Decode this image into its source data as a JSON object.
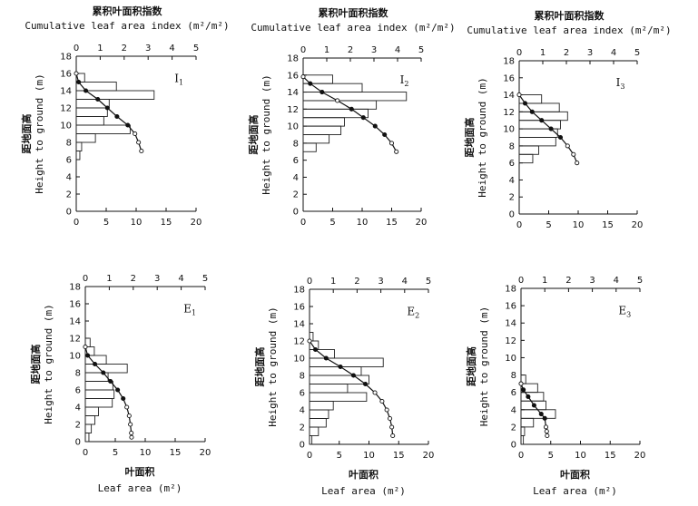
{
  "chart_data": [
    {
      "id": "I1",
      "type": "bar+line",
      "plot_label": "I",
      "plot_label_sub": "1",
      "top_title_cn": "累积叶面积指数",
      "top_title_en": "Cumulative leaf area index (m²/m²)",
      "bottom_title_cn": "",
      "bottom_title_en": "",
      "ylabel_cn": "距地面高",
      "ylabel_en": "Height to ground (m)",
      "top_ticks": [
        "0",
        "1",
        "2",
        "3",
        "4",
        "5"
      ],
      "bottom_ticks": [
        "0",
        "5",
        "10",
        "15",
        "20"
      ],
      "y_ticks": [
        "0",
        "2",
        "4",
        "6",
        "8",
        "10",
        "12",
        "14",
        "16",
        "18"
      ],
      "ylim": [
        0,
        18
      ],
      "bottom_xlim": [
        0,
        20
      ],
      "top_xlim": [
        0,
        5
      ],
      "bars": [
        {
          "y": 6.5,
          "value": 0.6
        },
        {
          "y": 7.5,
          "value": 0.9
        },
        {
          "y": 8.5,
          "value": 3.2
        },
        {
          "y": 9.5,
          "value": 9.0
        },
        {
          "y": 10.5,
          "value": 4.6
        },
        {
          "y": 11.5,
          "value": 5.2
        },
        {
          "y": 12.5,
          "value": 5.5
        },
        {
          "y": 13.5,
          "value": 13.0
        },
        {
          "y": 14.5,
          "value": 6.7
        },
        {
          "y": 15.5,
          "value": 1.4
        }
      ],
      "curve": [
        {
          "lai": 0.0,
          "h": 16.0,
          "filled": false
        },
        {
          "lai": 0.1,
          "h": 15.0,
          "filled": true
        },
        {
          "lai": 0.4,
          "h": 14.0,
          "filled": true
        },
        {
          "lai": 0.9,
          "h": 13.0,
          "filled": true
        },
        {
          "lai": 1.3,
          "h": 12.0,
          "filled": true
        },
        {
          "lai": 1.7,
          "h": 11.0,
          "filled": true
        },
        {
          "lai": 2.15,
          "h": 10.0,
          "filled": true
        },
        {
          "lai": 2.45,
          "h": 9.0,
          "filled": false
        },
        {
          "lai": 2.6,
          "h": 8.0,
          "filled": false
        },
        {
          "lai": 2.72,
          "h": 7.0,
          "filled": false
        }
      ]
    },
    {
      "id": "I2",
      "type": "bar+line",
      "plot_label": "I",
      "plot_label_sub": "2",
      "top_title_cn": "累积叶面积指数",
      "top_title_en": "Cumulative leaf area index (m²/m²)",
      "bottom_title_cn": "",
      "bottom_title_en": "",
      "ylabel_cn": "距地面高",
      "ylabel_en": "Height to ground (m)",
      "top_ticks": [
        "0",
        "1",
        "2",
        "3",
        "4",
        "5"
      ],
      "bottom_ticks": [
        "0",
        "5",
        "10",
        "15",
        "20"
      ],
      "y_ticks": [
        "0",
        "2",
        "4",
        "6",
        "8",
        "10",
        "12",
        "14",
        "16",
        "18"
      ],
      "ylim": [
        0,
        18
      ],
      "bottom_xlim": [
        0,
        20
      ],
      "top_xlim": [
        0,
        5
      ],
      "bars": [
        {
          "y": 7.5,
          "value": 2.2
        },
        {
          "y": 8.5,
          "value": 4.4
        },
        {
          "y": 9.5,
          "value": 6.4
        },
        {
          "y": 10.5,
          "value": 7.0
        },
        {
          "y": 11.5,
          "value": 11.0
        },
        {
          "y": 12.5,
          "value": 12.4
        },
        {
          "y": 13.5,
          "value": 17.5
        },
        {
          "y": 14.5,
          "value": 10.0
        },
        {
          "y": 15.5,
          "value": 5.0
        }
      ],
      "curve": [
        {
          "lai": 0.0,
          "h": 15.8,
          "filled": false
        },
        {
          "lai": 0.3,
          "h": 15.0,
          "filled": true
        },
        {
          "lai": 0.8,
          "h": 14.0,
          "filled": true
        },
        {
          "lai": 1.45,
          "h": 13.0,
          "filled": false
        },
        {
          "lai": 2.05,
          "h": 12.0,
          "filled": true
        },
        {
          "lai": 2.55,
          "h": 11.0,
          "filled": true
        },
        {
          "lai": 3.05,
          "h": 10.0,
          "filled": true
        },
        {
          "lai": 3.45,
          "h": 9.0,
          "filled": true
        },
        {
          "lai": 3.75,
          "h": 8.0,
          "filled": false
        },
        {
          "lai": 3.95,
          "h": 7.0,
          "filled": false
        }
      ]
    },
    {
      "id": "I3",
      "type": "bar+line",
      "plot_label": "I",
      "plot_label_sub": "3",
      "top_title_cn": "累积叶面积指数",
      "top_title_en": "Cumulative leaf area index (m²/m²)",
      "bottom_title_cn": "",
      "bottom_title_en": "",
      "ylabel_cn": "距地面高",
      "ylabel_en": "Height to ground (m)",
      "top_ticks": [
        "0",
        "1",
        "2",
        "3",
        "4",
        "5"
      ],
      "bottom_ticks": [
        "0",
        "5",
        "10",
        "15",
        "20"
      ],
      "y_ticks": [
        "0",
        "2",
        "4",
        "6",
        "8",
        "10",
        "12",
        "14",
        "16",
        "18"
      ],
      "ylim": [
        0,
        18
      ],
      "bottom_xlim": [
        0,
        20
      ],
      "top_xlim": [
        0,
        5
      ],
      "bars": [
        {
          "y": 6.5,
          "value": 2.3
        },
        {
          "y": 7.5,
          "value": 3.3
        },
        {
          "y": 8.5,
          "value": 6.2
        },
        {
          "y": 9.5,
          "value": 6.5
        },
        {
          "y": 10.5,
          "value": 7.0
        },
        {
          "y": 11.5,
          "value": 8.2
        },
        {
          "y": 12.5,
          "value": 6.8
        },
        {
          "y": 13.5,
          "value": 3.8
        }
      ],
      "curve": [
        {
          "lai": 0.0,
          "h": 14.0,
          "filled": false
        },
        {
          "lai": 0.25,
          "h": 13.0,
          "filled": true
        },
        {
          "lai": 0.55,
          "h": 12.0,
          "filled": true
        },
        {
          "lai": 0.95,
          "h": 11.0,
          "filled": true
        },
        {
          "lai": 1.35,
          "h": 10.0,
          "filled": true
        },
        {
          "lai": 1.75,
          "h": 9.0,
          "filled": true
        },
        {
          "lai": 2.05,
          "h": 8.0,
          "filled": false
        },
        {
          "lai": 2.3,
          "h": 7.0,
          "filled": false
        },
        {
          "lai": 2.45,
          "h": 6.0,
          "filled": false
        }
      ]
    },
    {
      "id": "E1",
      "type": "bar+line",
      "plot_label": "E",
      "plot_label_sub": "1",
      "top_title_cn": "",
      "top_title_en": "",
      "bottom_title_cn": "叶面积",
      "bottom_title_en": "Leaf area (m²)",
      "ylabel_cn": "距地面高",
      "ylabel_en": "Height to ground (m)",
      "top_ticks": [
        "0",
        "1",
        "2",
        "3",
        "4",
        "5"
      ],
      "bottom_ticks": [
        "0",
        "5",
        "10",
        "15",
        "20"
      ],
      "y_ticks": [
        "0",
        "2",
        "4",
        "6",
        "8",
        "10",
        "12",
        "14",
        "16",
        "18"
      ],
      "ylim": [
        0,
        18
      ],
      "bottom_xlim": [
        0,
        20
      ],
      "top_xlim": [
        0,
        5
      ],
      "bars": [
        {
          "y": 0.5,
          "value": 0.6
        },
        {
          "y": 1.5,
          "value": 1.0
        },
        {
          "y": 2.5,
          "value": 1.6
        },
        {
          "y": 3.5,
          "value": 2.2
        },
        {
          "y": 4.5,
          "value": 4.5
        },
        {
          "y": 5.5,
          "value": 4.8
        },
        {
          "y": 6.5,
          "value": 4.6
        },
        {
          "y": 7.5,
          "value": 3.8
        },
        {
          "y": 8.5,
          "value": 7.0
        },
        {
          "y": 9.5,
          "value": 3.5
        },
        {
          "y": 10.5,
          "value": 1.5
        },
        {
          "y": 11.5,
          "value": 0.8
        }
      ],
      "curve": [
        {
          "lai": 0.0,
          "h": 11.0,
          "filled": false
        },
        {
          "lai": 0.1,
          "h": 10.0,
          "filled": true
        },
        {
          "lai": 0.4,
          "h": 9.0,
          "filled": true
        },
        {
          "lai": 0.75,
          "h": 8.0,
          "filled": true
        },
        {
          "lai": 1.05,
          "h": 7.0,
          "filled": true
        },
        {
          "lai": 1.35,
          "h": 6.0,
          "filled": true
        },
        {
          "lai": 1.58,
          "h": 5.0,
          "filled": true
        },
        {
          "lai": 1.73,
          "h": 4.0,
          "filled": false
        },
        {
          "lai": 1.83,
          "h": 3.0,
          "filled": false
        },
        {
          "lai": 1.88,
          "h": 2.0,
          "filled": false
        },
        {
          "lai": 1.92,
          "h": 1.0,
          "filled": false
        },
        {
          "lai": 1.93,
          "h": 0.5,
          "filled": false
        }
      ]
    },
    {
      "id": "E2",
      "type": "bar+line",
      "plot_label": "E",
      "plot_label_sub": "2",
      "top_title_cn": "",
      "top_title_en": "",
      "bottom_title_cn": "叶面积",
      "bottom_title_en": "Leaf area (m²)",
      "ylabel_cn": "距地面高",
      "ylabel_en": "Height to ground (m)",
      "top_ticks": [
        "0",
        "1",
        "2",
        "3",
        "4",
        "5"
      ],
      "bottom_ticks": [
        "0",
        "5",
        "10",
        "15",
        "20"
      ],
      "y_ticks": [
        "0",
        "2",
        "4",
        "6",
        "8",
        "10",
        "12",
        "14",
        "16",
        "18"
      ],
      "ylim": [
        0,
        18
      ],
      "bottom_xlim": [
        0,
        20
      ],
      "top_xlim": [
        0,
        5
      ],
      "bars": [
        {
          "y": 0.5,
          "value": 0.4
        },
        {
          "y": 1.5,
          "value": 1.5
        },
        {
          "y": 2.5,
          "value": 2.8
        },
        {
          "y": 3.5,
          "value": 3.2
        },
        {
          "y": 4.5,
          "value": 4.0
        },
        {
          "y": 5.5,
          "value": 9.6
        },
        {
          "y": 6.5,
          "value": 6.4
        },
        {
          "y": 7.5,
          "value": 10.0
        },
        {
          "y": 8.5,
          "value": 8.7
        },
        {
          "y": 9.5,
          "value": 12.4
        },
        {
          "y": 10.5,
          "value": 4.2
        },
        {
          "y": 11.5,
          "value": 1.5
        },
        {
          "y": 12.5,
          "value": 0.6
        }
      ],
      "curve": [
        {
          "lai": 0.0,
          "h": 12.0,
          "filled": false
        },
        {
          "lai": 0.25,
          "h": 11.0,
          "filled": true
        },
        {
          "lai": 0.7,
          "h": 10.0,
          "filled": true
        },
        {
          "lai": 1.3,
          "h": 9.0,
          "filled": true
        },
        {
          "lai": 1.85,
          "h": 8.0,
          "filled": true
        },
        {
          "lai": 2.35,
          "h": 7.0,
          "filled": true
        },
        {
          "lai": 2.75,
          "h": 6.0,
          "filled": false
        },
        {
          "lai": 3.05,
          "h": 5.0,
          "filled": false
        },
        {
          "lai": 3.25,
          "h": 4.0,
          "filled": false
        },
        {
          "lai": 3.38,
          "h": 3.0,
          "filled": false
        },
        {
          "lai": 3.46,
          "h": 2.0,
          "filled": false
        },
        {
          "lai": 3.5,
          "h": 1.0,
          "filled": false
        }
      ]
    },
    {
      "id": "E3",
      "type": "bar+line",
      "plot_label": "E",
      "plot_label_sub": "3",
      "top_title_cn": "",
      "top_title_en": "",
      "bottom_title_cn": "叶面积",
      "bottom_title_en": "Leaf area (m²)",
      "ylabel_cn": "距地面高",
      "ylabel_en": "Height to ground (m)",
      "top_ticks": [
        "0",
        "1",
        "2",
        "3",
        "4",
        "5"
      ],
      "bottom_ticks": [
        "0",
        "5",
        "10",
        "15",
        "20"
      ],
      "y_ticks": [
        "0",
        "2",
        "4",
        "6",
        "8",
        "10",
        "12",
        "14",
        "16",
        "18"
      ],
      "ylim": [
        0,
        18
      ],
      "bottom_xlim": [
        0,
        20
      ],
      "top_xlim": [
        0,
        5
      ],
      "bars": [
        {
          "y": 0.5,
          "value": 0.4
        },
        {
          "y": 1.5,
          "value": 0.6
        },
        {
          "y": 2.5,
          "value": 2.1
        },
        {
          "y": 3.5,
          "value": 5.8
        },
        {
          "y": 4.5,
          "value": 4.2
        },
        {
          "y": 5.5,
          "value": 3.8
        },
        {
          "y": 6.5,
          "value": 2.8
        },
        {
          "y": 7.5,
          "value": 0.8
        }
      ],
      "curve": [
        {
          "lai": 0.0,
          "h": 7.0,
          "filled": false
        },
        {
          "lai": 0.1,
          "h": 6.3,
          "filled": true
        },
        {
          "lai": 0.3,
          "h": 5.5,
          "filled": true
        },
        {
          "lai": 0.55,
          "h": 4.5,
          "filled": true
        },
        {
          "lai": 0.85,
          "h": 3.5,
          "filled": true
        },
        {
          "lai": 1.0,
          "h": 3.0,
          "filled": true
        },
        {
          "lai": 1.05,
          "h": 2.0,
          "filled": false
        },
        {
          "lai": 1.08,
          "h": 1.5,
          "filled": false
        },
        {
          "lai": 1.1,
          "h": 1.0,
          "filled": false
        }
      ]
    }
  ]
}
